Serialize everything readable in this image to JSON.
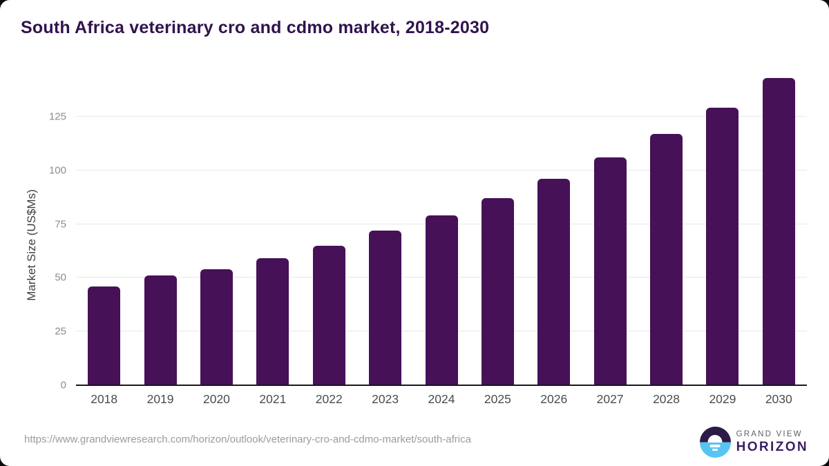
{
  "title": "South Africa veterinary cro and cdmo market, 2018-2030",
  "chart_data": {
    "type": "bar",
    "title": "South Africa veterinary cro and cdmo market, 2018-2030",
    "categories": [
      "2018",
      "2019",
      "2020",
      "2021",
      "2022",
      "2023",
      "2024",
      "2025",
      "2026",
      "2027",
      "2028",
      "2029",
      "2030"
    ],
    "values": [
      46,
      51,
      54,
      59,
      65,
      72,
      79,
      87,
      96,
      106,
      117,
      129,
      143
    ],
    "xlabel": "",
    "ylabel": "Market Size (US$Ms)",
    "ylim": [
      0,
      150
    ],
    "yticks": [
      0,
      25,
      50,
      75,
      100,
      125
    ],
    "grid": true,
    "legend": "none",
    "bar_color": "#461157"
  },
  "footer": {
    "source_url": "https://www.grandviewresearch.com/horizon/outlook/veterinary-cro-and-cdmo-market/south-africa",
    "logo": {
      "line1": "GRAND VIEW",
      "line2": "HORIZON"
    }
  }
}
